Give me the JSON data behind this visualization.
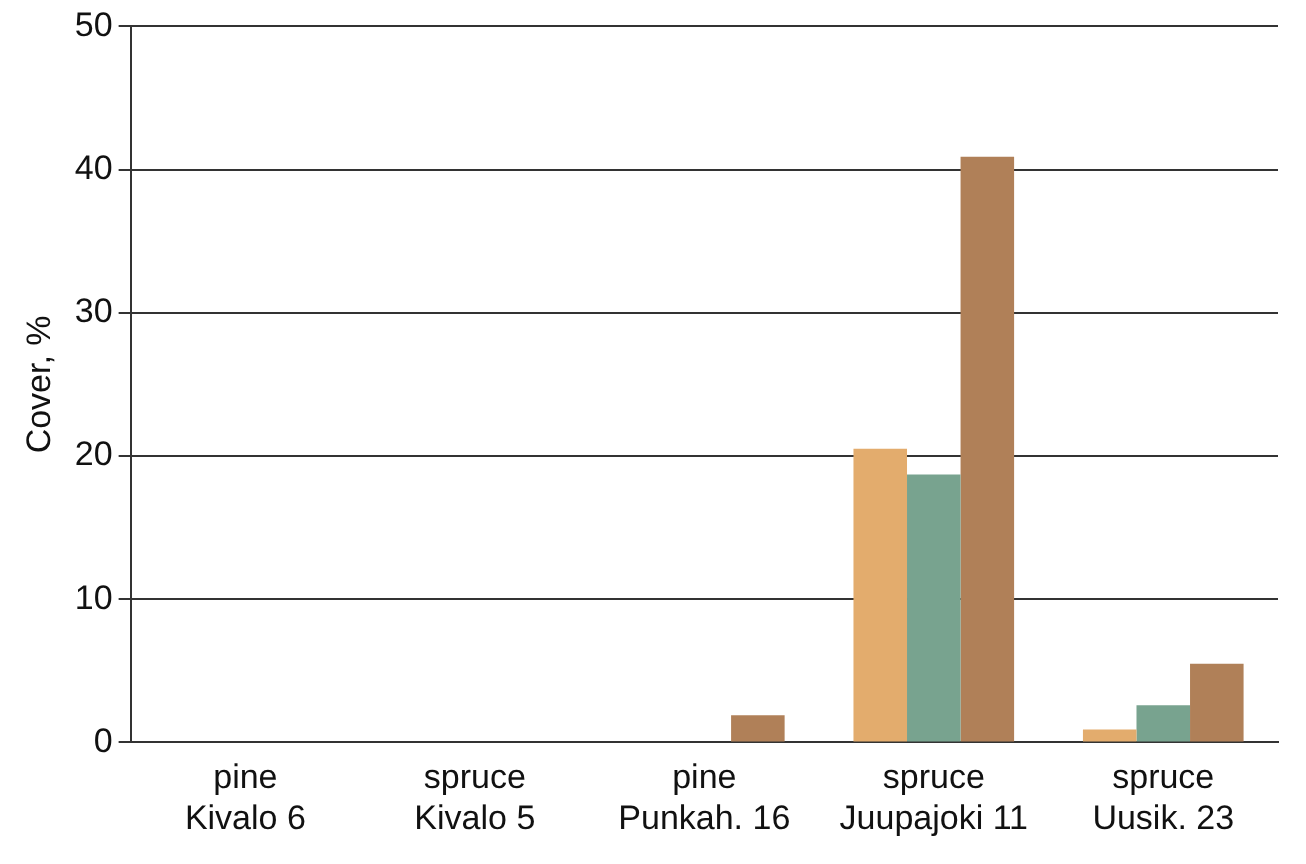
{
  "chart_data": {
    "type": "bar",
    "ylabel": "Cover, %",
    "categories": [
      "pine\nKivalo 6",
      "spruce\nKivalo 5",
      "pine\nPunkah. 16",
      "spruce\nJuupajoki 11",
      "spruce\nUusik. 23"
    ],
    "series": [
      {
        "color": "#e3ac6d",
        "values": [
          0,
          null,
          null,
          20.5,
          0.9
        ]
      },
      {
        "color": "#78a38f",
        "values": [
          0,
          null,
          null,
          18.7,
          2.6
        ]
      },
      {
        "color": "#b08058",
        "values": [
          0,
          null,
          1.9,
          40.9,
          5.5
        ]
      }
    ],
    "ylim": [
      0,
      50
    ],
    "yticks": [
      0,
      10,
      20,
      30,
      40,
      50
    ],
    "grid": "y",
    "legend": false
  }
}
